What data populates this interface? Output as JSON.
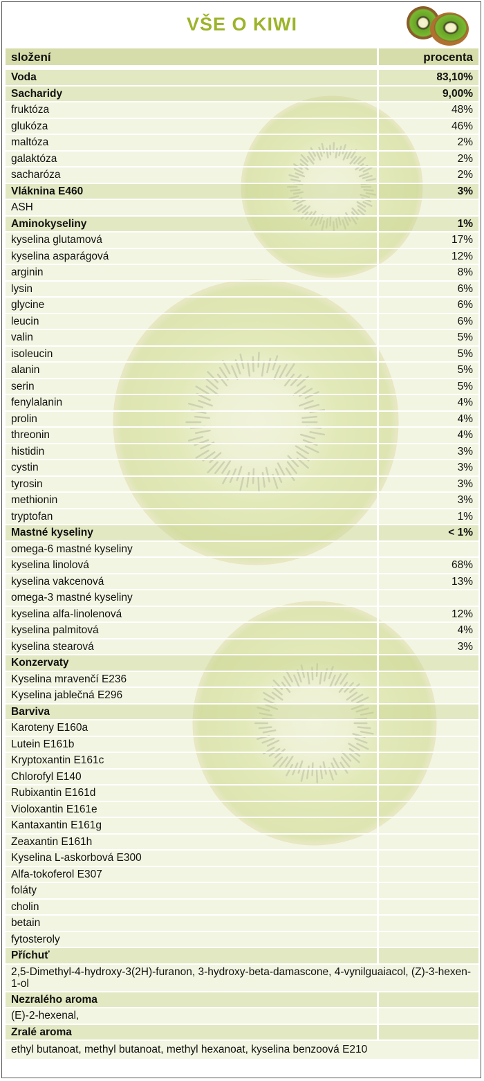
{
  "header": {
    "title": "VŠE O KIWI"
  },
  "table": {
    "columns": [
      "složení",
      "procenta"
    ],
    "rows": [
      {
        "label": "Voda",
        "value": "83,10%",
        "bold": true
      },
      {
        "label": "Sacharidy",
        "value": "9,00%",
        "bold": true
      },
      {
        "label": "fruktóza",
        "value": "48%"
      },
      {
        "label": "glukóza",
        "value": "46%"
      },
      {
        "label": "maltóza",
        "value": "2%"
      },
      {
        "label": "galaktóza",
        "value": "2%"
      },
      {
        "label": "sacharóza",
        "value": "2%"
      },
      {
        "label": "Vláknina E460",
        "value": "3%",
        "bold": true
      },
      {
        "label": "ASH"
      },
      {
        "label": "Aminokyseliny",
        "value": "1%",
        "bold": true
      },
      {
        "label": "kyselina glutamová",
        "value": "17%"
      },
      {
        "label": "kyselina asparágová",
        "value": "12%"
      },
      {
        "label": "arginin",
        "value": "8%"
      },
      {
        "label": "lysin",
        "value": "6%"
      },
      {
        "label": "glycine",
        "value": "6%"
      },
      {
        "label": "leucin",
        "value": "6%"
      },
      {
        "label": "valin",
        "value": "5%"
      },
      {
        "label": "isoleucin",
        "value": "5%"
      },
      {
        "label": "alanin",
        "value": "5%"
      },
      {
        "label": "serin",
        "value": "5%"
      },
      {
        "label": "fenylalanin",
        "value": "4%"
      },
      {
        "label": "prolin",
        "value": "4%"
      },
      {
        "label": "threonin",
        "value": "4%"
      },
      {
        "label": "histidin",
        "value": "3%"
      },
      {
        "label": "cystin",
        "value": "3%"
      },
      {
        "label": "tyrosin",
        "value": "3%"
      },
      {
        "label": "methionin",
        "value": "3%"
      },
      {
        "label": "tryptofan",
        "value": "1%"
      },
      {
        "label": "Mastné kyseliny",
        "value": "< 1%",
        "bold": true
      },
      {
        "label": "omega-6 mastné kyseliny"
      },
      {
        "label": "kyselina linolová",
        "value": "68%"
      },
      {
        "label": "kyselina vakcenová",
        "value": "13%"
      },
      {
        "label": "omega-3 mastné kyseliny"
      },
      {
        "label": "kyselina alfa-linolenová",
        "value": "12%"
      },
      {
        "label": "kyselina palmitová",
        "value": "4%"
      },
      {
        "label": "kyselina stearová",
        "value": "3%"
      },
      {
        "label": "Konzervaty",
        "bold": true
      },
      {
        "label": "Kyselina mravenčí E236"
      },
      {
        "label": "Kyselina jablečná E296"
      },
      {
        "label": "Barviva",
        "bold": true
      },
      {
        "label": "Karoteny E160a"
      },
      {
        "label": "Lutein E161b"
      },
      {
        "label": "Kryptoxantin E161c"
      },
      {
        "label": "Chlorofyl E140"
      },
      {
        "label": "Rubixantin E161d"
      },
      {
        "label": "Violoxantin E161e"
      },
      {
        "label": "Kantaxantin E161g"
      },
      {
        "label": "Zeaxantin E161h"
      },
      {
        "label": "Kyselina L-askorbová E300"
      },
      {
        "label": "Alfa-tokoferol E307"
      },
      {
        "label": "foláty"
      },
      {
        "label": "cholin"
      },
      {
        "label": "betain"
      },
      {
        "label": "fytosteroly"
      },
      {
        "label": "Příchuť",
        "bold": true
      },
      {
        "label": "2,5-Dimethyl-4-hydroxy-3(2H)-furanon, 3-hydroxy-beta-damascone, 4-vynilguaiacol, (Z)-3-hexen-1-ol"
      },
      {
        "label": "Nezralého aroma",
        "bold": true
      },
      {
        "label": "(E)-2-hexenal,"
      },
      {
        "label": "Zralé aroma",
        "bold": true
      },
      {
        "label": "ethyl butanoat, methyl butanoat, methyl hexanoat, kyselina benzoová E210"
      }
    ]
  }
}
